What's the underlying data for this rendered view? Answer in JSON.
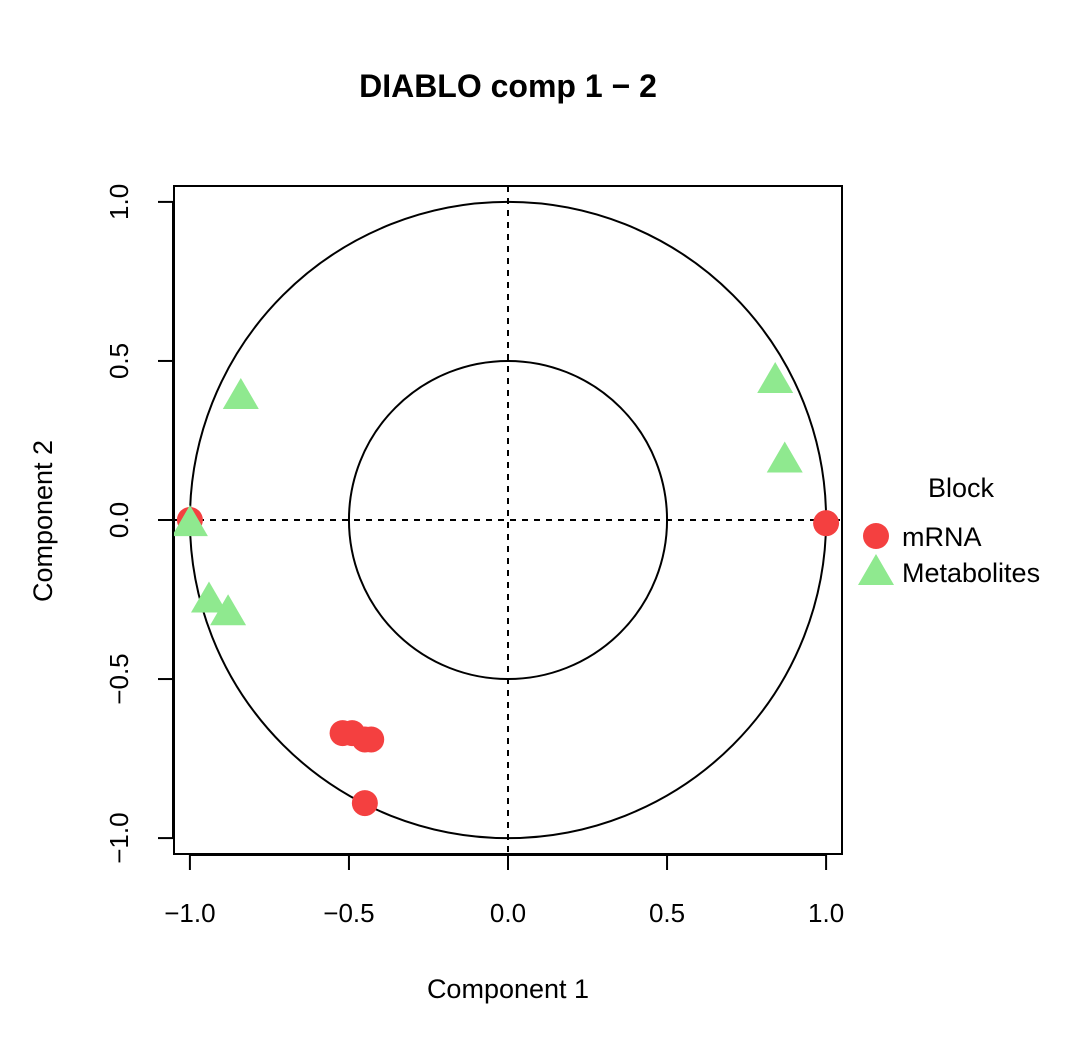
{
  "chart_data": {
    "type": "scatter",
    "title": "DIABLO comp 1 − 2",
    "xlabel": "Component  1",
    "ylabel": "Component  2",
    "xlim": [
      -1.05,
      1.05
    ],
    "ylim": [
      -1.05,
      1.05
    ],
    "xticks": [
      -1.0,
      -0.5,
      0.0,
      0.5,
      1.0
    ],
    "xtick_labels": [
      "−1.0",
      "−0.5",
      "0.0",
      "0.5",
      "1.0"
    ],
    "yticks": [
      -1.0,
      -0.5,
      0.0,
      0.5,
      1.0
    ],
    "ytick_labels": [
      "−1.0",
      "−0.5",
      "0.0",
      "0.5",
      "1.0"
    ],
    "circles": [
      0.5,
      1.0
    ],
    "reference_lines": {
      "x": 0,
      "y": 0,
      "style": "dashed"
    },
    "legend": {
      "title": "Block",
      "position": "right",
      "entries": [
        {
          "label": "mRNA",
          "shape": "circle",
          "color": "#F44040"
        },
        {
          "label": "Metabolites",
          "shape": "triangle",
          "color": "#8FE98F"
        }
      ]
    },
    "series": [
      {
        "name": "mRNA",
        "shape": "circle",
        "color": "#F44040",
        "x": [
          -1.0,
          1.0,
          -0.52,
          -0.49,
          -0.45,
          -0.43,
          -0.45
        ],
        "y": [
          0.0,
          -0.01,
          -0.67,
          -0.67,
          -0.69,
          -0.69,
          -0.89
        ]
      },
      {
        "name": "Metabolites",
        "shape": "triangle",
        "color": "#8FE98F",
        "x": [
          -0.84,
          -0.94,
          -0.88,
          -1.0,
          0.84,
          0.87
        ],
        "y": [
          0.39,
          -0.25,
          -0.29,
          -0.01,
          0.44,
          0.19
        ]
      }
    ]
  }
}
